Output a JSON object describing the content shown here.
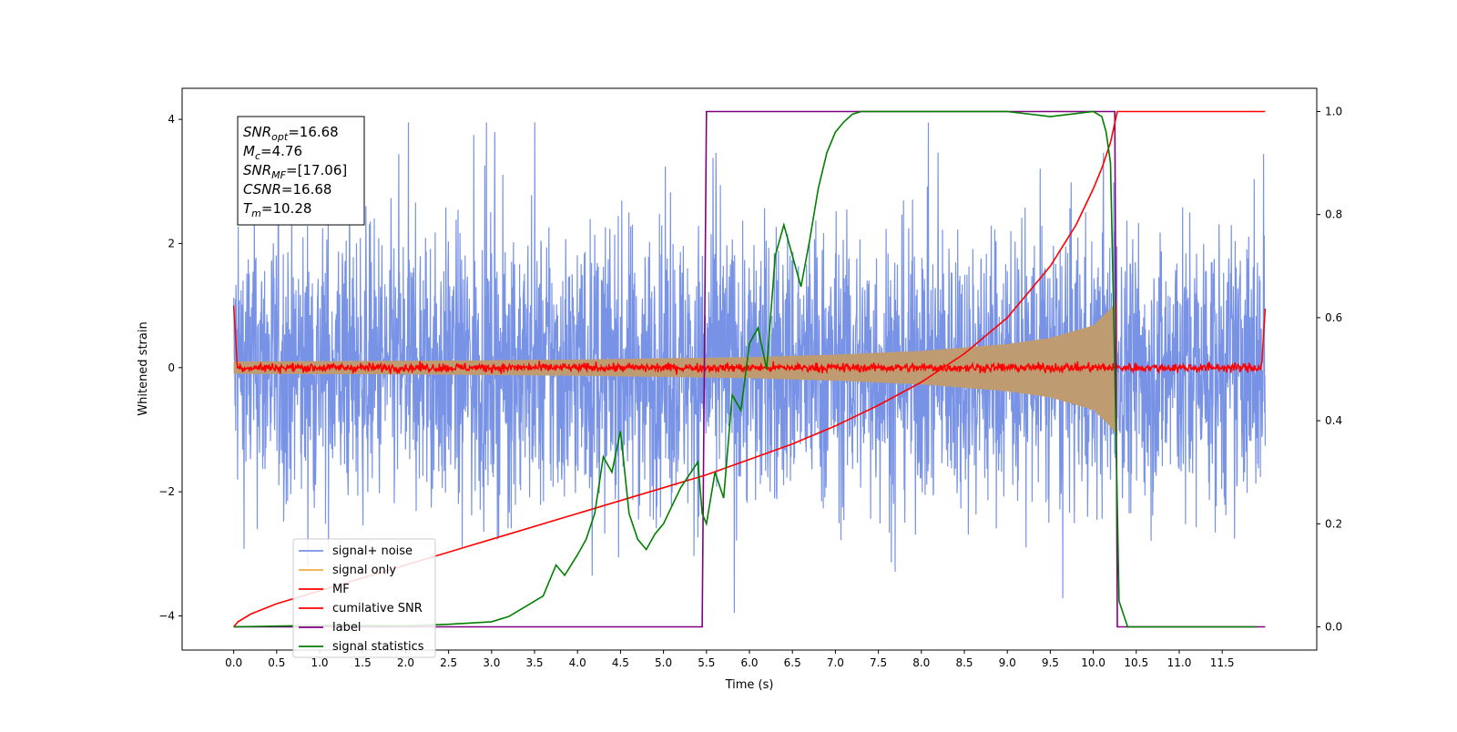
{
  "chart_data": {
    "type": "line",
    "xlabel": "Time (s)",
    "ylabel": "Whitened strain",
    "y2label": "",
    "xlim": [
      -0.6,
      12.6
    ],
    "ylim": [
      -4.55,
      4.5
    ],
    "y2lim": [
      -0.045,
      1.045
    ],
    "x_ticks": [
      0.0,
      0.5,
      1.0,
      1.5,
      2.0,
      2.5,
      3.0,
      3.5,
      4.0,
      4.5,
      5.0,
      5.5,
      6.0,
      6.5,
      7.0,
      7.5,
      8.0,
      8.5,
      9.0,
      9.5,
      10.0,
      10.5,
      11.0,
      11.5
    ],
    "x_tick_labels": [
      "0.0",
      "0.5",
      "1.0",
      "1.5",
      "2.0",
      "2.5",
      "3.0",
      "3.5",
      "4.0",
      "4.5",
      "5.0",
      "5.5",
      "6.0",
      "6.5",
      "7.0",
      "7.5",
      "8.0",
      "8.5",
      "9.0",
      "9.5",
      "10.0",
      "10.5",
      "11.0",
      "11.5"
    ],
    "y_ticks": [
      -4,
      -2,
      0,
      2,
      4
    ],
    "y_tick_labels": [
      "−4",
      "−2",
      "0",
      "2",
      "4"
    ],
    "y2_ticks": [
      0.0,
      0.2,
      0.4,
      0.6,
      0.8,
      1.0
    ],
    "y2_tick_labels": [
      "0.0",
      "0.2",
      "0.4",
      "0.6",
      "0.8",
      "1.0"
    ],
    "grid": false,
    "legend_position": "lower-left",
    "annotation_lines": [
      {
        "sym": "SNR",
        "sub": "opt",
        "value": "=16.68"
      },
      {
        "sym": "M",
        "sub": "c",
        "value": "=4.76"
      },
      {
        "sym": "SNR",
        "sub": "MF",
        "value": "=[17.06]"
      },
      {
        "sym": "CSNR",
        "sub": "",
        "value": "=16.68"
      },
      {
        "sym": "T",
        "sub": "m",
        "value": "=10.28"
      }
    ],
    "series": [
      {
        "name": "signal+ noise",
        "axis": "left",
        "color": "#7893e6",
        "description_values": "noise band, approx amplitude ±1.5 (peaks to ±3.9) from t=0 to t=12",
        "x_range": [
          0.0,
          12.0
        ],
        "amplitude": 1.5
      },
      {
        "name": "signal only",
        "axis": "left",
        "color": "#f5b860",
        "envelope": {
          "x": [
            0.0,
            2.0,
            4.0,
            6.0,
            7.0,
            8.0,
            9.0,
            9.5,
            10.0,
            10.2,
            10.28
          ],
          "y": [
            0.1,
            0.11,
            0.13,
            0.17,
            0.21,
            0.27,
            0.38,
            0.48,
            0.68,
            0.95,
            1.1
          ]
        }
      },
      {
        "name": "MF",
        "axis": "left",
        "color": "#ff0000",
        "x_range": [
          0.0,
          12.0
        ],
        "amplitude": 0.06
      },
      {
        "name": "cumilative SNR",
        "axis": "right",
        "color": "#ff0000",
        "x": [
          0.0,
          0.05,
          0.2,
          0.5,
          1.0,
          2.0,
          3.0,
          4.0,
          5.0,
          5.5,
          6.0,
          6.5,
          7.0,
          7.5,
          8.0,
          8.5,
          9.0,
          9.5,
          9.8,
          10.0,
          10.1,
          10.2,
          10.28,
          12.0
        ],
        "values": [
          0.0,
          0.01,
          0.025,
          0.045,
          0.07,
          0.12,
          0.17,
          0.22,
          0.27,
          0.295,
          0.325,
          0.355,
          0.39,
          0.43,
          0.475,
          0.53,
          0.6,
          0.7,
          0.78,
          0.85,
          0.89,
          0.94,
          1.0,
          1.0
        ]
      },
      {
        "name": "label",
        "axis": "right",
        "color": "#800080",
        "x": [
          0.0,
          5.45,
          5.5,
          10.25,
          10.28,
          12.0
        ],
        "values": [
          0.0,
          0.0,
          1.0,
          1.0,
          0.0,
          0.0
        ]
      },
      {
        "name": "signal statistics",
        "axis": "right",
        "color": "#008000",
        "x": [
          0.0,
          1.0,
          2.0,
          2.5,
          3.0,
          3.2,
          3.4,
          3.6,
          3.75,
          3.85,
          4.0,
          4.1,
          4.2,
          4.3,
          4.4,
          4.5,
          4.6,
          4.7,
          4.8,
          4.9,
          5.0,
          5.2,
          5.4,
          5.45,
          5.5,
          5.6,
          5.7,
          5.8,
          5.9,
          6.0,
          6.1,
          6.2,
          6.3,
          6.4,
          6.5,
          6.6,
          6.7,
          6.8,
          6.9,
          7.0,
          7.1,
          7.2,
          7.3,
          7.5,
          8.0,
          9.0,
          9.5,
          10.0,
          10.1,
          10.15,
          10.2,
          10.25,
          10.3,
          10.4,
          11.0,
          11.5,
          11.9
        ],
        "values": [
          0.0,
          0.003,
          0.002,
          0.005,
          0.01,
          0.02,
          0.04,
          0.06,
          0.12,
          0.1,
          0.14,
          0.17,
          0.22,
          0.33,
          0.3,
          0.38,
          0.22,
          0.17,
          0.15,
          0.18,
          0.2,
          0.27,
          0.32,
          0.22,
          0.2,
          0.3,
          0.25,
          0.45,
          0.42,
          0.55,
          0.58,
          0.5,
          0.72,
          0.78,
          0.72,
          0.66,
          0.75,
          0.85,
          0.92,
          0.96,
          0.98,
          0.995,
          1.0,
          1.0,
          1.0,
          1.0,
          0.99,
          1.0,
          0.99,
          0.96,
          0.9,
          0.5,
          0.05,
          0.0,
          0.0,
          0.0,
          0.0
        ]
      }
    ]
  }
}
